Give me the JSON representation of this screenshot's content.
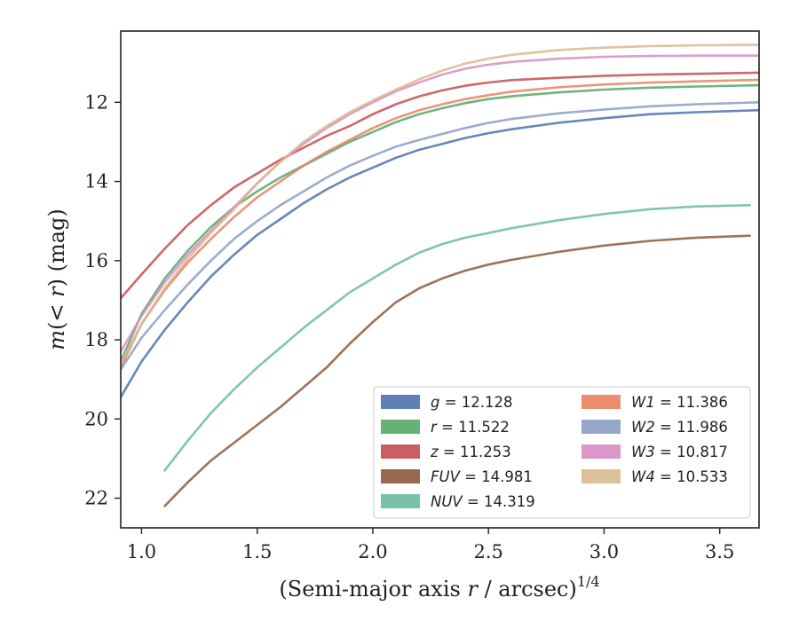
{
  "chart_data": {
    "type": "line",
    "xlabel_main": "(Semi-major axis ",
    "xlabel_var": "r",
    "xlabel_rest": " / arcsec)",
    "xlabel_sup": "1/4",
    "ylabel_pre": "m",
    "ylabel_mid": "(< ",
    "ylabel_var": "r",
    "ylabel_post": ") (mag)",
    "xlim": [
      0.91,
      3.67
    ],
    "ylim": [
      22.75,
      10.2
    ],
    "y_inverted": true,
    "xticks": [
      "1.0",
      "1.5",
      "2.0",
      "2.5",
      "3.0",
      "3.5"
    ],
    "xtick_values": [
      1.0,
      1.5,
      2.0,
      2.5,
      3.0,
      3.5
    ],
    "yticks": [
      "12",
      "14",
      "16",
      "18",
      "20",
      "22"
    ],
    "ytick_values": [
      12,
      14,
      16,
      18,
      20,
      22
    ],
    "legend_location": "lower right",
    "series": [
      {
        "name_var": "g",
        "name_val": " = 12.128",
        "color": "#4c72b0",
        "x": [
          0.91,
          1.0,
          1.1,
          1.2,
          1.3,
          1.4,
          1.5,
          1.6,
          1.7,
          1.8,
          1.9,
          2.0,
          2.1,
          2.2,
          2.3,
          2.4,
          2.5,
          2.6,
          2.8,
          3.0,
          3.2,
          3.4,
          3.67
        ],
        "y": [
          19.45,
          18.55,
          17.75,
          17.05,
          16.4,
          15.85,
          15.35,
          14.95,
          14.55,
          14.2,
          13.9,
          13.65,
          13.4,
          13.2,
          13.05,
          12.9,
          12.78,
          12.68,
          12.52,
          12.4,
          12.3,
          12.25,
          12.2
        ]
      },
      {
        "name_var": "r",
        "name_val": " = 11.522",
        "color": "#55a868",
        "x": [
          0.91,
          1.0,
          1.1,
          1.2,
          1.3,
          1.4,
          1.5,
          1.6,
          1.7,
          1.8,
          1.9,
          2.0,
          2.1,
          2.2,
          2.3,
          2.4,
          2.5,
          2.6,
          2.8,
          3.0,
          3.2,
          3.4,
          3.67
        ],
        "y": [
          18.55,
          17.35,
          16.45,
          15.75,
          15.15,
          14.65,
          14.25,
          13.9,
          13.6,
          13.3,
          13.0,
          12.75,
          12.5,
          12.3,
          12.15,
          12.02,
          11.92,
          11.85,
          11.75,
          11.68,
          11.63,
          11.6,
          11.57
        ]
      },
      {
        "name_var": "z",
        "name_val": " = 11.253",
        "color": "#c44e52",
        "x": [
          0.91,
          1.0,
          1.1,
          1.2,
          1.3,
          1.4,
          1.5,
          1.6,
          1.7,
          1.8,
          1.9,
          2.0,
          2.1,
          2.2,
          2.3,
          2.4,
          2.5,
          2.6,
          2.8,
          3.0,
          3.2,
          3.4,
          3.67
        ],
        "y": [
          16.95,
          16.35,
          15.7,
          15.1,
          14.6,
          14.15,
          13.8,
          13.45,
          13.15,
          12.85,
          12.6,
          12.3,
          12.05,
          11.85,
          11.7,
          11.58,
          11.5,
          11.44,
          11.38,
          11.33,
          11.3,
          11.28,
          11.25
        ]
      },
      {
        "name_var": "FUV",
        "name_val": " = 14.981",
        "color": "#8c5a3c",
        "x": [
          1.1,
          1.2,
          1.3,
          1.4,
          1.5,
          1.6,
          1.7,
          1.8,
          1.9,
          2.0,
          2.1,
          2.2,
          2.3,
          2.4,
          2.5,
          2.6,
          2.8,
          3.0,
          3.2,
          3.4,
          3.63
        ],
        "y": [
          22.2,
          21.6,
          21.05,
          20.6,
          20.15,
          19.7,
          19.2,
          18.7,
          18.1,
          17.55,
          17.05,
          16.7,
          16.45,
          16.25,
          16.1,
          15.98,
          15.78,
          15.62,
          15.5,
          15.42,
          15.37
        ]
      },
      {
        "name_var": "NUV",
        "name_val": " = 14.319",
        "color": "#6bbaa3",
        "x": [
          1.1,
          1.2,
          1.3,
          1.4,
          1.5,
          1.6,
          1.7,
          1.8,
          1.9,
          2.0,
          2.1,
          2.2,
          2.3,
          2.4,
          2.5,
          2.6,
          2.8,
          3.0,
          3.2,
          3.4,
          3.63
        ],
        "y": [
          21.3,
          20.55,
          19.85,
          19.25,
          18.7,
          18.2,
          17.7,
          17.25,
          16.8,
          16.45,
          16.1,
          15.8,
          15.58,
          15.42,
          15.3,
          15.18,
          14.98,
          14.82,
          14.7,
          14.63,
          14.6
        ]
      },
      {
        "name_var": "W1",
        "name_val": " = 11.386",
        "color": "#e8825f",
        "x": [
          0.91,
          1.0,
          1.1,
          1.2,
          1.3,
          1.4,
          1.5,
          1.6,
          1.7,
          1.8,
          1.9,
          2.0,
          2.1,
          2.2,
          2.3,
          2.4,
          2.5,
          2.6,
          2.8,
          3.0,
          3.2,
          3.4,
          3.67
        ],
        "y": [
          18.7,
          17.6,
          16.75,
          16.05,
          15.45,
          14.9,
          14.4,
          14.0,
          13.6,
          13.25,
          12.95,
          12.65,
          12.4,
          12.2,
          12.05,
          11.92,
          11.82,
          11.73,
          11.62,
          11.55,
          11.5,
          11.47,
          11.43
        ]
      },
      {
        "name_var": "W2",
        "name_val": " = 11.986",
        "color": "#8c9dc4",
        "x": [
          0.91,
          1.0,
          1.1,
          1.2,
          1.3,
          1.4,
          1.5,
          1.6,
          1.7,
          1.8,
          1.9,
          2.0,
          2.1,
          2.2,
          2.3,
          2.4,
          2.5,
          2.6,
          2.8,
          3.0,
          3.2,
          3.4,
          3.67
        ],
        "y": [
          18.75,
          17.95,
          17.25,
          16.6,
          16.0,
          15.45,
          15.0,
          14.6,
          14.25,
          13.9,
          13.6,
          13.35,
          13.12,
          12.95,
          12.8,
          12.65,
          12.52,
          12.42,
          12.28,
          12.18,
          12.1,
          12.05,
          12.0
        ]
      },
      {
        "name_var": "W3",
        "name_val": " = 10.817",
        "color": "#da8bc3",
        "x": [
          0.91,
          1.0,
          1.1,
          1.2,
          1.3,
          1.4,
          1.5,
          1.6,
          1.7,
          1.8,
          1.9,
          2.0,
          2.1,
          2.2,
          2.3,
          2.4,
          2.5,
          2.6,
          2.8,
          3.0,
          3.2,
          3.4,
          3.67
        ],
        "y": [
          18.3,
          17.4,
          16.55,
          15.85,
          15.25,
          14.65,
          14.05,
          13.5,
          13.05,
          12.65,
          12.3,
          12.0,
          11.72,
          11.5,
          11.3,
          11.15,
          11.05,
          10.98,
          10.9,
          10.85,
          10.83,
          10.82,
          10.82
        ]
      },
      {
        "name_var": "W4",
        "name_val": " = 10.533",
        "color": "#d8b98f",
        "x": [
          0.91,
          1.0,
          1.1,
          1.2,
          1.3,
          1.4,
          1.5,
          1.6,
          1.7,
          1.8,
          1.9,
          2.0,
          2.1,
          2.2,
          2.3,
          2.4,
          2.5,
          2.6,
          2.8,
          3.0,
          3.2,
          3.4,
          3.67
        ],
        "y": [
          18.6,
          17.6,
          16.7,
          15.95,
          15.3,
          14.7,
          14.05,
          13.5,
          13.0,
          12.6,
          12.25,
          11.95,
          11.68,
          11.42,
          11.2,
          11.02,
          10.9,
          10.8,
          10.68,
          10.62,
          10.58,
          10.56,
          10.55
        ]
      }
    ]
  }
}
